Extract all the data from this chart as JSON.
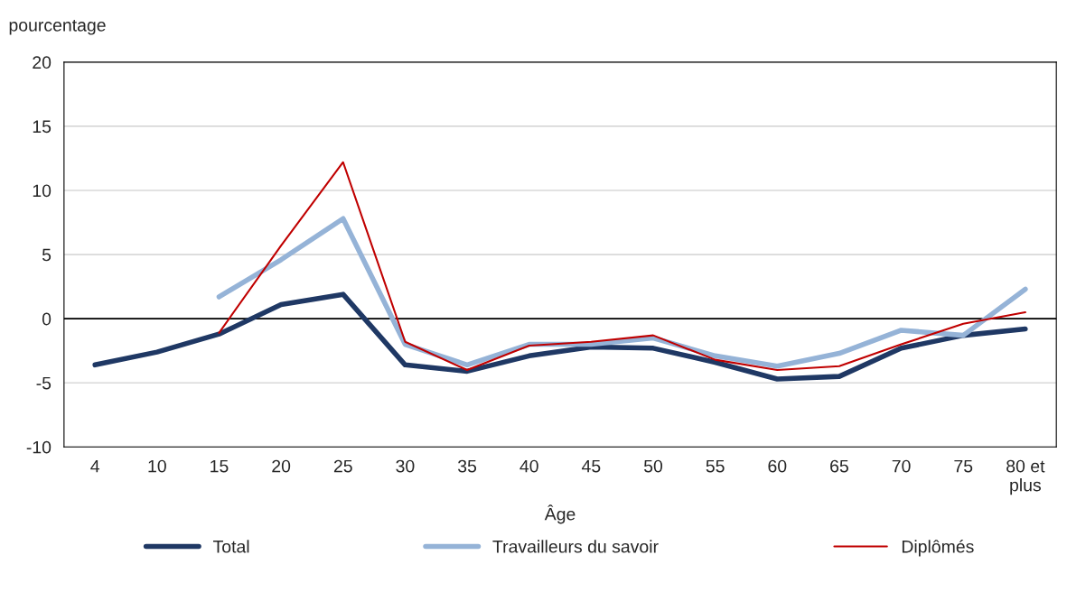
{
  "chart_data": {
    "type": "line",
    "ylabel": "pourcentage",
    "xlabel": "Âge",
    "categories": [
      "4",
      "10",
      "15",
      "20",
      "25",
      "30",
      "35",
      "40",
      "45",
      "50",
      "55",
      "60",
      "65",
      "70",
      "75",
      "80 et\nplus"
    ],
    "series": [
      {
        "name": "Total",
        "color": "#1f3864",
        "values": [
          -3.6,
          -2.6,
          -1.2,
          1.1,
          1.9,
          -3.6,
          -4.1,
          -2.9,
          -2.2,
          -2.3,
          -3.4,
          -4.7,
          -4.5,
          -2.3,
          -1.3,
          -0.8
        ]
      },
      {
        "name": "Travailleurs du savoir",
        "color": "#95b3d7",
        "values": [
          null,
          null,
          1.7,
          4.6,
          7.8,
          -2.0,
          -3.6,
          -2.0,
          -2.0,
          -1.5,
          -2.9,
          -3.7,
          -2.7,
          -0.9,
          -1.3,
          2.3
        ]
      },
      {
        "name": "Diplômés",
        "color": "#c00000",
        "values": [
          null,
          null,
          -1.1,
          5.7,
          12.2,
          -1.8,
          -4.0,
          -2.1,
          -1.8,
          -1.3,
          -3.2,
          -4.0,
          -3.7,
          -2.0,
          -0.4,
          0.5
        ]
      }
    ],
    "ylim": [
      -10,
      20
    ],
    "yticks": [
      -10,
      -5,
      0,
      5,
      10,
      15,
      20
    ],
    "grid": "y",
    "legend": "bottom",
    "marker": "none",
    "line_style": "solid",
    "ref_lines": [
      {
        "axis": "y",
        "value": 0,
        "color": "#000000"
      }
    ]
  }
}
